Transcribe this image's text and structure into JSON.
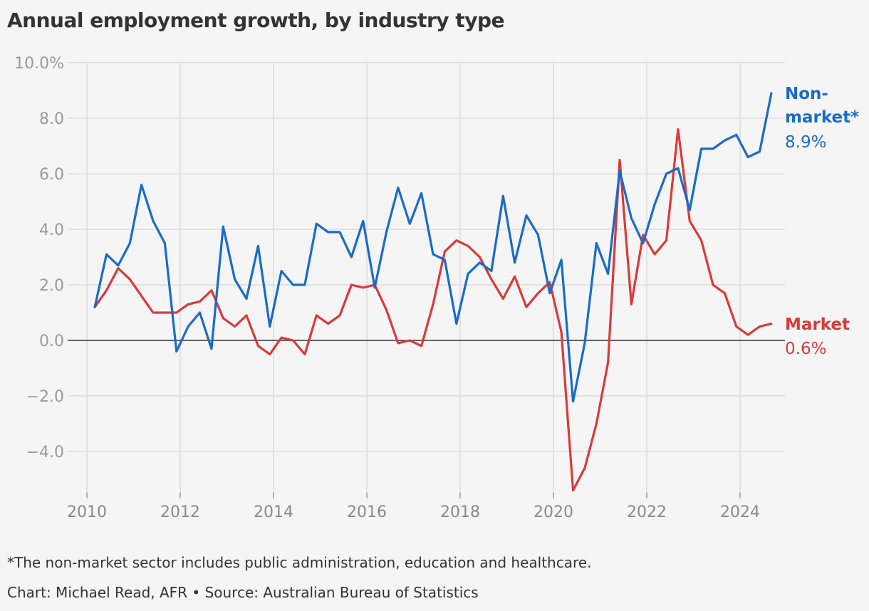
{
  "chart_data": {
    "type": "line",
    "title": "Annual employment growth, by industry type",
    "ylim": [
      -5.4,
      10.0
    ],
    "xlim": [
      2010,
      2025
    ],
    "y_ticks": [
      10.0,
      8.0,
      6.0,
      4.0,
      2.0,
      0.0,
      -2.0,
      -4.0
    ],
    "y_tick_labels": [
      "10.0%",
      "8.0",
      "6.0",
      "4.0",
      "2.0",
      "0.0",
      "−2.0",
      "−4.0"
    ],
    "x_ticks": [
      2010,
      2012,
      2014,
      2016,
      2018,
      2020,
      2022,
      2024
    ],
    "x_tick_labels": [
      "2010",
      "2012",
      "2014",
      "2016",
      "2018",
      "2020",
      "2022",
      "2024"
    ],
    "grid": true,
    "series": [
      {
        "name": "Non-market*",
        "color": "#1a6bc7",
        "end_label": "8.9%",
        "points": [
          [
            2010.17,
            1.2
          ],
          [
            2010.42,
            3.1
          ],
          [
            2010.67,
            2.7
          ],
          [
            2010.92,
            3.5
          ],
          [
            2011.17,
            5.6
          ],
          [
            2011.42,
            4.3
          ],
          [
            2011.67,
            3.5
          ],
          [
            2011.92,
            -0.4
          ],
          [
            2012.17,
            0.5
          ],
          [
            2012.42,
            1.0
          ],
          [
            2012.67,
            -0.3
          ],
          [
            2012.92,
            4.1
          ],
          [
            2013.17,
            2.2
          ],
          [
            2013.42,
            1.5
          ],
          [
            2013.67,
            3.4
          ],
          [
            2013.92,
            0.5
          ],
          [
            2014.17,
            2.5
          ],
          [
            2014.42,
            2.0
          ],
          [
            2014.67,
            2.0
          ],
          [
            2014.92,
            4.2
          ],
          [
            2015.17,
            3.9
          ],
          [
            2015.42,
            3.9
          ],
          [
            2015.67,
            3.0
          ],
          [
            2015.92,
            4.3
          ],
          [
            2016.17,
            1.9
          ],
          [
            2016.42,
            3.9
          ],
          [
            2016.67,
            5.5
          ],
          [
            2016.92,
            4.2
          ],
          [
            2017.17,
            5.3
          ],
          [
            2017.42,
            3.1
          ],
          [
            2017.67,
            2.9
          ],
          [
            2017.92,
            0.6
          ],
          [
            2018.17,
            2.4
          ],
          [
            2018.42,
            2.8
          ],
          [
            2018.67,
            2.5
          ],
          [
            2018.92,
            5.2
          ],
          [
            2019.17,
            2.8
          ],
          [
            2019.42,
            4.5
          ],
          [
            2019.67,
            3.8
          ],
          [
            2019.92,
            1.7
          ],
          [
            2020.17,
            2.9
          ],
          [
            2020.42,
            -2.2
          ],
          [
            2020.67,
            -0.1
          ],
          [
            2020.92,
            3.5
          ],
          [
            2021.17,
            2.4
          ],
          [
            2021.42,
            6.1
          ],
          [
            2021.67,
            4.4
          ],
          [
            2021.92,
            3.5
          ],
          [
            2022.17,
            4.9
          ],
          [
            2022.42,
            6.0
          ],
          [
            2022.67,
            6.2
          ],
          [
            2022.92,
            4.7
          ],
          [
            2023.17,
            6.9
          ],
          [
            2023.42,
            6.9
          ],
          [
            2023.67,
            7.2
          ],
          [
            2023.92,
            7.4
          ],
          [
            2024.17,
            6.6
          ],
          [
            2024.42,
            6.8
          ],
          [
            2024.67,
            8.9
          ]
        ]
      },
      {
        "name": "Market",
        "color": "#d93a3a",
        "end_label": "0.6%",
        "points": [
          [
            2010.17,
            1.2
          ],
          [
            2010.42,
            1.8
          ],
          [
            2010.67,
            2.6
          ],
          [
            2010.92,
            2.2
          ],
          [
            2011.17,
            1.6
          ],
          [
            2011.42,
            1.0
          ],
          [
            2011.67,
            1.0
          ],
          [
            2011.92,
            1.0
          ],
          [
            2012.17,
            1.3
          ],
          [
            2012.42,
            1.4
          ],
          [
            2012.67,
            1.8
          ],
          [
            2012.92,
            0.8
          ],
          [
            2013.17,
            0.5
          ],
          [
            2013.42,
            0.9
          ],
          [
            2013.67,
            -0.2
          ],
          [
            2013.92,
            -0.5
          ],
          [
            2014.17,
            0.1
          ],
          [
            2014.42,
            0.0
          ],
          [
            2014.67,
            -0.5
          ],
          [
            2014.92,
            0.9
          ],
          [
            2015.17,
            0.6
          ],
          [
            2015.42,
            0.9
          ],
          [
            2015.67,
            2.0
          ],
          [
            2015.92,
            1.9
          ],
          [
            2016.17,
            2.0
          ],
          [
            2016.42,
            1.1
          ],
          [
            2016.67,
            -0.1
          ],
          [
            2016.92,
            0.0
          ],
          [
            2017.17,
            -0.2
          ],
          [
            2017.42,
            1.3
          ],
          [
            2017.67,
            3.2
          ],
          [
            2017.92,
            3.6
          ],
          [
            2018.17,
            3.4
          ],
          [
            2018.42,
            3.0
          ],
          [
            2018.67,
            2.2
          ],
          [
            2018.92,
            1.5
          ],
          [
            2019.17,
            2.3
          ],
          [
            2019.42,
            1.2
          ],
          [
            2019.67,
            1.7
          ],
          [
            2019.92,
            2.1
          ],
          [
            2020.17,
            0.3
          ],
          [
            2020.42,
            -5.4
          ],
          [
            2020.67,
            -4.6
          ],
          [
            2020.92,
            -3.0
          ],
          [
            2021.17,
            -0.8
          ],
          [
            2021.42,
            6.5
          ],
          [
            2021.67,
            1.3
          ],
          [
            2021.92,
            3.8
          ],
          [
            2022.17,
            3.1
          ],
          [
            2022.42,
            3.6
          ],
          [
            2022.67,
            7.6
          ],
          [
            2022.92,
            4.3
          ],
          [
            2023.17,
            3.6
          ],
          [
            2023.42,
            2.0
          ],
          [
            2023.67,
            1.7
          ],
          [
            2023.92,
            0.5
          ],
          [
            2024.17,
            0.2
          ],
          [
            2024.42,
            0.5
          ],
          [
            2024.67,
            0.6
          ]
        ]
      }
    ],
    "end_labels": {
      "non_market_line1": "Non-",
      "non_market_line2": "market*",
      "non_market_value": "8.9%",
      "market_name": "Market",
      "market_value": "0.6%"
    },
    "note": "*The non-market sector includes public administration, education and healthcare.",
    "credit": "Chart: Michael Read, AFR • Source: Australian Bureau of Statistics"
  }
}
